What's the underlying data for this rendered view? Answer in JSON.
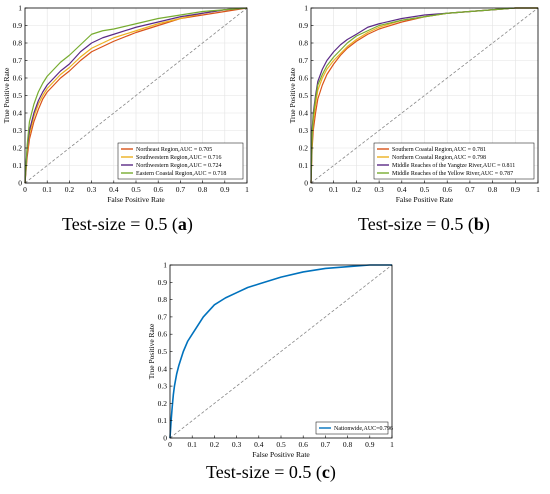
{
  "colors": {
    "orange": "#d95319",
    "yellow": "#edb120",
    "purple": "#5b2a86",
    "green": "#77ac30",
    "blue": "#0072bd",
    "diag": "#888888"
  },
  "captions": [
    {
      "prefix": "Test-size = 0.5 (",
      "letter": "a",
      "suffix": ")"
    },
    {
      "prefix": "Test-size = 0.5 (",
      "letter": "b",
      "suffix": ")"
    },
    {
      "prefix": "Test-size = 0.5 (",
      "letter": "c",
      "suffix": ")"
    }
  ],
  "chart_data": [
    {
      "type": "line",
      "xlabel": "False Positive Rate",
      "ylabel": "True Positive Rate",
      "xlim": [
        0,
        1
      ],
      "ylim": [
        0,
        1
      ],
      "xticks": [
        "0",
        "0.1",
        "0.2",
        "0.3",
        "0.4",
        "0.5",
        "0.6",
        "0.7",
        "0.8",
        "0.9",
        "1"
      ],
      "yticks": [
        "0",
        "0.1",
        "0.2",
        "0.3",
        "0.4",
        "0.5",
        "0.6",
        "0.7",
        "0.8",
        "0.9",
        "1"
      ],
      "grid": true,
      "diagonal": true,
      "legend_position": "bottom-right",
      "series": [
        {
          "name": "Northeast Region,AUC = 0.705",
          "color": "orange",
          "x": [
            0,
            0.01,
            0.02,
            0.04,
            0.06,
            0.08,
            0.1,
            0.13,
            0.16,
            0.2,
            0.25,
            0.3,
            0.35,
            0.4,
            0.5,
            0.6,
            0.7,
            0.8,
            0.9,
            1
          ],
          "y": [
            0,
            0.15,
            0.25,
            0.35,
            0.42,
            0.48,
            0.52,
            0.56,
            0.6,
            0.64,
            0.7,
            0.75,
            0.78,
            0.81,
            0.86,
            0.9,
            0.94,
            0.96,
            0.98,
            1
          ]
        },
        {
          "name": "Southwestern Region,AUC = 0.716",
          "color": "yellow",
          "x": [
            0,
            0.01,
            0.02,
            0.04,
            0.06,
            0.08,
            0.1,
            0.13,
            0.16,
            0.2,
            0.25,
            0.3,
            0.35,
            0.4,
            0.5,
            0.6,
            0.7,
            0.8,
            0.9,
            1
          ],
          "y": [
            0,
            0.18,
            0.28,
            0.38,
            0.45,
            0.5,
            0.54,
            0.58,
            0.62,
            0.66,
            0.72,
            0.77,
            0.8,
            0.83,
            0.87,
            0.91,
            0.94,
            0.97,
            0.99,
            1
          ]
        },
        {
          "name": "Northwestern Region,AUC = 0.724",
          "color": "purple",
          "x": [
            0,
            0.01,
            0.02,
            0.04,
            0.06,
            0.08,
            0.1,
            0.13,
            0.16,
            0.2,
            0.25,
            0.3,
            0.35,
            0.4,
            0.5,
            0.6,
            0.7,
            0.8,
            0.9,
            1
          ],
          "y": [
            0,
            0.2,
            0.3,
            0.4,
            0.47,
            0.52,
            0.56,
            0.6,
            0.64,
            0.68,
            0.75,
            0.8,
            0.83,
            0.85,
            0.89,
            0.92,
            0.95,
            0.97,
            0.99,
            1
          ]
        },
        {
          "name": "Eastern Coastal Region,AUC = 0.718",
          "color": "green",
          "x": [
            0,
            0.01,
            0.02,
            0.04,
            0.06,
            0.08,
            0.1,
            0.13,
            0.16,
            0.2,
            0.25,
            0.3,
            0.35,
            0.4,
            0.5,
            0.6,
            0.7,
            0.8,
            0.9,
            1
          ],
          "y": [
            0,
            0.22,
            0.35,
            0.45,
            0.52,
            0.57,
            0.61,
            0.65,
            0.69,
            0.73,
            0.79,
            0.85,
            0.87,
            0.88,
            0.91,
            0.94,
            0.96,
            0.98,
            0.99,
            1
          ]
        }
      ]
    },
    {
      "type": "line",
      "xlabel": "False Positive Rate",
      "ylabel": "True Positive Rate",
      "xlim": [
        0,
        1
      ],
      "ylim": [
        0,
        1
      ],
      "xticks": [
        "0",
        "0.1",
        "0.2",
        "0.3",
        "0.4",
        "0.5",
        "0.6",
        "0.7",
        "0.8",
        "0.9",
        "1"
      ],
      "yticks": [
        "0",
        "0.1",
        "0.2",
        "0.3",
        "0.4",
        "0.5",
        "0.6",
        "0.7",
        "0.8",
        "0.9",
        "1"
      ],
      "grid": true,
      "diagonal": true,
      "legend_position": "bottom-right",
      "series": [
        {
          "name": "Southern Coastal Region,AUC = 0.781",
          "color": "orange",
          "x": [
            0,
            0.005,
            0.01,
            0.02,
            0.03,
            0.05,
            0.07,
            0.1,
            0.13,
            0.16,
            0.2,
            0.25,
            0.3,
            0.4,
            0.5,
            0.6,
            0.7,
            0.8,
            0.9,
            1
          ],
          "y": [
            0,
            0.2,
            0.3,
            0.4,
            0.48,
            0.56,
            0.62,
            0.68,
            0.73,
            0.77,
            0.81,
            0.85,
            0.88,
            0.92,
            0.95,
            0.97,
            0.98,
            0.99,
            1,
            1
          ]
        },
        {
          "name": "Northern Coastal Region,AUC = 0.798",
          "color": "yellow",
          "x": [
            0,
            0.005,
            0.01,
            0.02,
            0.03,
            0.05,
            0.07,
            0.1,
            0.13,
            0.16,
            0.2,
            0.25,
            0.3,
            0.4,
            0.5,
            0.6,
            0.7,
            0.8,
            0.9,
            1
          ],
          "y": [
            0,
            0.25,
            0.35,
            0.45,
            0.53,
            0.6,
            0.65,
            0.7,
            0.74,
            0.78,
            0.82,
            0.86,
            0.89,
            0.93,
            0.95,
            0.97,
            0.98,
            0.99,
            1,
            1
          ]
        },
        {
          "name": "Middle Reaches of the Yangtze River,AUC = 0.811",
          "color": "purple",
          "x": [
            0,
            0.005,
            0.01,
            0.02,
            0.03,
            0.05,
            0.07,
            0.1,
            0.13,
            0.16,
            0.2,
            0.25,
            0.3,
            0.4,
            0.5,
            0.6,
            0.7,
            0.8,
            0.9,
            1
          ],
          "y": [
            0,
            0.3,
            0.4,
            0.5,
            0.58,
            0.65,
            0.7,
            0.75,
            0.79,
            0.82,
            0.85,
            0.89,
            0.91,
            0.94,
            0.96,
            0.97,
            0.98,
            0.99,
            1,
            1
          ]
        },
        {
          "name": "Middle Reaches of the Yellow River,AUC = 0.787",
          "color": "green",
          "x": [
            0,
            0.005,
            0.01,
            0.02,
            0.03,
            0.05,
            0.07,
            0.1,
            0.13,
            0.16,
            0.2,
            0.25,
            0.3,
            0.4,
            0.5,
            0.6,
            0.7,
            0.8,
            0.9,
            1
          ],
          "y": [
            0,
            0.28,
            0.38,
            0.48,
            0.56,
            0.62,
            0.67,
            0.72,
            0.76,
            0.8,
            0.84,
            0.87,
            0.9,
            0.93,
            0.95,
            0.97,
            0.98,
            0.99,
            1,
            1
          ]
        }
      ]
    },
    {
      "type": "line",
      "xlabel": "False Positive Rate",
      "ylabel": "True Positive Rate",
      "xlim": [
        0,
        1
      ],
      "ylim": [
        0,
        1
      ],
      "xticks": [
        "0",
        "0.1",
        "0.2",
        "0.3",
        "0.4",
        "0.5",
        "0.6",
        "0.7",
        "0.8",
        "0.9",
        "1"
      ],
      "yticks": [
        "0",
        "0.1",
        "0.2",
        "0.3",
        "0.4",
        "0.5",
        "0.6",
        "0.7",
        "0.8",
        "0.9",
        "1"
      ],
      "grid": false,
      "diagonal": true,
      "legend_position": "bottom-right",
      "series": [
        {
          "name": "Nationwide,AUC=0.796",
          "color": "blue",
          "x": [
            0,
            0.005,
            0.01,
            0.015,
            0.02,
            0.03,
            0.04,
            0.05,
            0.06,
            0.08,
            0.1,
            0.12,
            0.15,
            0.2,
            0.25,
            0.3,
            0.35,
            0.4,
            0.5,
            0.6,
            0.7,
            0.8,
            0.9,
            1
          ],
          "y": [
            0,
            0.1,
            0.18,
            0.25,
            0.3,
            0.37,
            0.42,
            0.46,
            0.5,
            0.56,
            0.6,
            0.64,
            0.7,
            0.77,
            0.81,
            0.84,
            0.87,
            0.89,
            0.93,
            0.96,
            0.98,
            0.99,
            1,
            1
          ]
        }
      ]
    }
  ]
}
